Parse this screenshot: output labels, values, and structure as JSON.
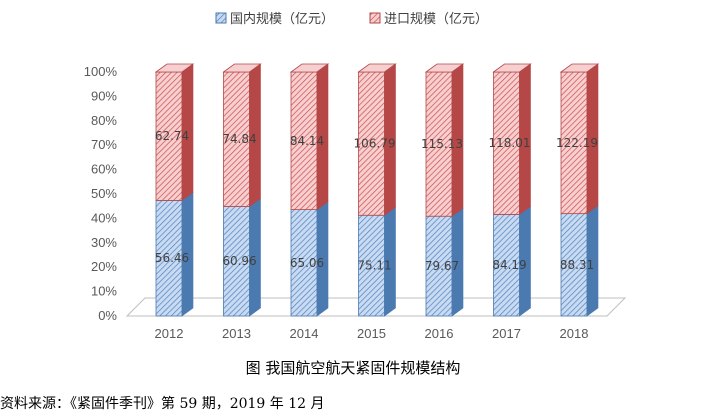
{
  "caption": "图 我国航空航天紧固件规模结构",
  "source": "资料来源：《紧固件季刊》第 59 期，2019 年 12 月",
  "colors": {
    "domestic_fill": "#c9dbf2",
    "domestic_hatch": "#4f81bd",
    "domestic_side": "#4a7ab0",
    "import_fill": "#f6d0d0",
    "import_hatch": "#d04b4b",
    "import_side": "#b54747"
  },
  "chart_data": {
    "type": "bar",
    "stacked": "percent",
    "categories": [
      "2012",
      "2013",
      "2014",
      "2015",
      "2016",
      "2017",
      "2018"
    ],
    "series": [
      {
        "name": "国内规模（亿元）",
        "values": [
          56.46,
          60.96,
          65.06,
          75.11,
          79.67,
          84.19,
          88.31
        ]
      },
      {
        "name": "进口规模（亿元）",
        "values": [
          62.74,
          74.84,
          84.14,
          106.79,
          115.13,
          118.01,
          122.19
        ]
      }
    ],
    "y_ticks": [
      "0%",
      "10%",
      "20%",
      "30%",
      "40%",
      "50%",
      "60%",
      "70%",
      "80%",
      "90%",
      "100%"
    ],
    "ylim": [
      0,
      100
    ],
    "legend_position": "top-center",
    "grid": false
  }
}
